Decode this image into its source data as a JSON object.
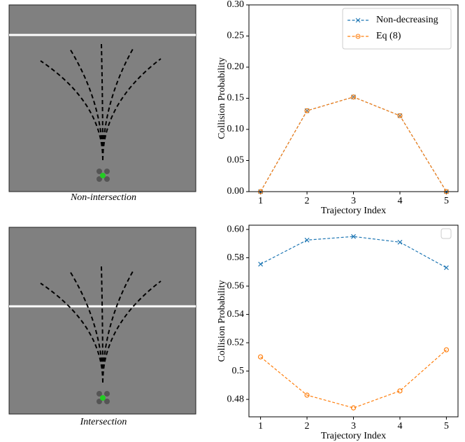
{
  "figures": [
    {
      "caption": "Non-intersection"
    },
    {
      "caption": "Intersection"
    }
  ],
  "chart_data": [
    {
      "type": "line",
      "x_label": "Trajectory Index",
      "y_label": "Collision Probability",
      "x": [
        1,
        2,
        3,
        4,
        5
      ],
      "xlim": [
        0.75,
        5.25
      ],
      "xticks": [
        1,
        2,
        3,
        4,
        5
      ],
      "ylim": [
        0,
        0.3
      ],
      "yticks": [
        {
          "value": 0,
          "label": "0.00"
        },
        {
          "value": 0.05,
          "label": "0.05"
        },
        {
          "value": 0.1,
          "label": "0.10"
        },
        {
          "value": 0.15,
          "label": "0.15"
        },
        {
          "value": 0.2,
          "label": "0.20"
        },
        {
          "value": 0.25,
          "label": "0.25"
        },
        {
          "value": 0.3,
          "label": "0.30"
        }
      ],
      "legend": "upper right",
      "legend_entries": true,
      "series": [
        {
          "name": "Non-decreasing",
          "color": "#1f77b4",
          "marker": "x",
          "values": [
            0,
            0.13,
            0.152,
            0.122,
            0
          ]
        },
        {
          "name": "Eq (8)",
          "color": "#ff7f0e",
          "marker": "o",
          "values": [
            0,
            0.13,
            0.152,
            0.122,
            0
          ]
        }
      ]
    },
    {
      "type": "line",
      "x_label": "Trajectory Index",
      "y_label": "Collision Probability",
      "x": [
        1,
        2,
        3,
        4,
        5
      ],
      "xlim": [
        0.75,
        5.25
      ],
      "xticks": [
        1,
        2,
        3,
        4,
        5
      ],
      "ylim": [
        0.4677,
        0.603
      ],
      "yticks": [
        0.48,
        0.5,
        0.52,
        0.54,
        0.56,
        0.58,
        {
          "value": 0.6,
          "label": "0.60"
        }
      ],
      "legend": "upper right",
      "legend_entries": false,
      "series": [
        {
          "name": "Non-decreasing",
          "color": "#1f77b4",
          "marker": "x",
          "values": [
            0.5755,
            0.5925,
            0.595,
            0.591,
            0.573
          ]
        },
        {
          "name": "Eq (8)",
          "color": "#ff7f0e",
          "marker": "o",
          "values": [
            0.51,
            0.483,
            0.474,
            0.486,
            0.515
          ]
        }
      ]
    }
  ]
}
